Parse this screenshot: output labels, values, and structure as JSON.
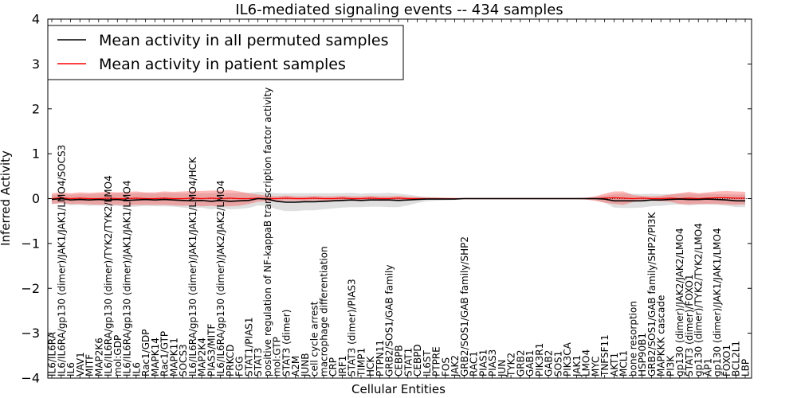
{
  "chart_data": {
    "type": "line",
    "title": "IL6-mediated signaling events -- 434 samples",
    "xlabel": "Cellular Entities",
    "ylabel": "Inferred Activity",
    "ylim": [
      -4,
      4
    ],
    "yticks": [
      "−4",
      "−3",
      "−2",
      "−1",
      "0",
      "1",
      "2",
      "3",
      "4"
    ],
    "legend": {
      "position": "top-left",
      "entries": [
        {
          "label": "Mean activity in all permuted samples",
          "color": "#000000"
        },
        {
          "label": "Mean activity in patient samples",
          "color": "#ff0000"
        }
      ]
    },
    "categories": [
      "IL6/IL6RA",
      "IL6/IL6RA/gp130 (dimer)/JAK1/JAK1/LMO4/SOCS3",
      "IL6",
      "VAV1",
      "MITF",
      "MAP2K6",
      "IL6/IL6RA/gp130 (dimer)/TYK2/TYK2/LMO4",
      "mol:GDP",
      "IL6/IL6RA/gp130 (dimer)/JAK1/JAK1/LMO4",
      "IL6",
      "Rac1/GDP",
      "MAPK14",
      "Rac1/GTP",
      "MAPK11",
      "SOCS3",
      "IL6/IL6RA/gp130 (dimer)/JAK1/JAK1/LMO4/HCK",
      "MAP2K4",
      "PIAS3/MITF",
      "IL6/IL6RA/gp130 (dimer)/JAK2/JAK2/LMO4",
      "PRKCD",
      "FGG",
      "STAT1/PIAS1",
      "STAT3",
      "positive regulation of NF-kappaB transcription factor activity",
      "mol:GTP",
      "STAT3 (dimer)",
      "A2M",
      "JUNB",
      "cell cycle arrest",
      "macrophage differentiation",
      "CRP",
      "IRF1",
      "STAT3 (dimer)/PIAS3",
      "TIMP1",
      "HCK",
      "PTPN11",
      "GRB2/SOS1/GAB family",
      "CEBPB",
      "STAT1",
      "CEBPD",
      "IL6ST",
      "PTPRE",
      "FOS",
      "JAK2",
      "GRB2/SOS1/GAB family/SHP2",
      "RAC1",
      "PIAS1",
      "PIAS3",
      "JUN",
      "TYK2",
      "GRB2",
      "GAB1",
      "PIK3R1",
      "GAB2",
      "SOS1",
      "PIK3CA",
      "JAK1",
      "LMO4",
      "MYC",
      "TNFSF11",
      "AKT1",
      "MCL1",
      "bone resorption",
      "HSP90B1",
      "GRB2/SOS1/GAB family/SHP2/PI3K",
      "MAPKKK cascade",
      "PI3K",
      "gp130 (dimer)/JAK2/JAK2/LMO4",
      "STAT3 (dimer)/FOXO1",
      "gp130 (dimer)/TYK2/TYK2/LMO4",
      "AP1",
      "gp130 (dimer)/JAK1/JAK1/LMO4",
      "FOXO1",
      "BCL2L1",
      "LBP"
    ],
    "series": [
      {
        "name": "Mean activity in all permuted samples",
        "color": "#000000",
        "values": [
          -0.02,
          0.0,
          -0.03,
          -0.02,
          -0.03,
          -0.02,
          -0.03,
          -0.02,
          -0.04,
          -0.03,
          -0.02,
          -0.03,
          -0.02,
          -0.03,
          -0.04,
          -0.05,
          -0.04,
          -0.06,
          -0.04,
          -0.06,
          -0.05,
          -0.04,
          0.0,
          -0.01,
          -0.06,
          -0.08,
          -0.08,
          -0.07,
          -0.07,
          -0.06,
          -0.05,
          -0.04,
          -0.03,
          -0.04,
          -0.03,
          -0.03,
          -0.03,
          -0.04,
          -0.03,
          -0.02,
          -0.01,
          -0.01,
          -0.01,
          -0.01,
          0.0,
          0.0,
          0.0,
          0.0,
          0.0,
          0.0,
          0.0,
          0.0,
          0.0,
          0.0,
          0.0,
          0.0,
          0.0,
          0.0,
          0.0,
          -0.01,
          -0.05,
          -0.05,
          -0.05,
          -0.05,
          -0.03,
          -0.03,
          -0.02,
          -0.01,
          -0.02,
          -0.02,
          -0.01,
          -0.02,
          -0.03,
          -0.05,
          -0.05
        ],
        "band": [
          0.1,
          0.1,
          0.12,
          0.12,
          0.13,
          0.13,
          0.14,
          0.14,
          0.15,
          0.15,
          0.14,
          0.14,
          0.15,
          0.15,
          0.16,
          0.17,
          0.16,
          0.18,
          0.17,
          0.18,
          0.18,
          0.17,
          0.15,
          0.15,
          0.18,
          0.2,
          0.2,
          0.19,
          0.19,
          0.18,
          0.17,
          0.16,
          0.16,
          0.15,
          0.15,
          0.15,
          0.16,
          0.15,
          0.12,
          0.08,
          0.05,
          0.04,
          0.03,
          0.02,
          0.01,
          0.01,
          0.01,
          0.01,
          0.01,
          0.01,
          0.01,
          0.01,
          0.01,
          0.01,
          0.01,
          0.01,
          0.01,
          0.02,
          0.04,
          0.08,
          0.15,
          0.16,
          0.16,
          0.15,
          0.14,
          0.13,
          0.12,
          0.12,
          0.13,
          0.12,
          0.12,
          0.12,
          0.13,
          0.14,
          0.14
        ]
      },
      {
        "name": "Mean activity in patient samples",
        "color": "#ff0000",
        "values": [
          0.0,
          0.02,
          0.0,
          0.01,
          0.0,
          0.0,
          0.01,
          0.0,
          0.0,
          0.01,
          0.0,
          0.0,
          0.01,
          0.0,
          0.0,
          0.01,
          0.0,
          0.01,
          0.0,
          0.01,
          0.0,
          0.0,
          0.01,
          0.0,
          0.0,
          0.01,
          0.0,
          0.0,
          0.01,
          0.0,
          0.0,
          0.01,
          0.0,
          0.0,
          0.01,
          0.0,
          0.0,
          0.01,
          0.0,
          0.0,
          0.0,
          0.0,
          0.0,
          0.0,
          0.0,
          0.0,
          0.0,
          0.0,
          0.0,
          0.0,
          0.0,
          0.0,
          0.0,
          0.0,
          0.0,
          0.0,
          0.0,
          0.0,
          0.0,
          0.01,
          0.02,
          0.01,
          0.0,
          0.01,
          0.0,
          0.0,
          0.01,
          0.0,
          0.01,
          0.0,
          0.01,
          0.02,
          0.02,
          0.01,
          0.01
        ],
        "band": [
          0.12,
          0.12,
          0.12,
          0.13,
          0.13,
          0.14,
          0.14,
          0.14,
          0.15,
          0.15,
          0.14,
          0.14,
          0.15,
          0.15,
          0.16,
          0.16,
          0.17,
          0.17,
          0.18,
          0.18,
          0.16,
          0.12,
          0.08,
          0.06,
          0.05,
          0.06,
          0.05,
          0.05,
          0.05,
          0.05,
          0.05,
          0.05,
          0.05,
          0.05,
          0.05,
          0.05,
          0.05,
          0.05,
          0.04,
          0.03,
          0.02,
          0.02,
          0.01,
          0.01,
          0.01,
          0.01,
          0.01,
          0.01,
          0.01,
          0.01,
          0.01,
          0.01,
          0.01,
          0.01,
          0.01,
          0.01,
          0.01,
          0.02,
          0.05,
          0.1,
          0.14,
          0.15,
          0.08,
          0.05,
          0.05,
          0.06,
          0.08,
          0.12,
          0.14,
          0.12,
          0.13,
          0.14,
          0.15,
          0.15,
          0.14
        ]
      }
    ]
  }
}
